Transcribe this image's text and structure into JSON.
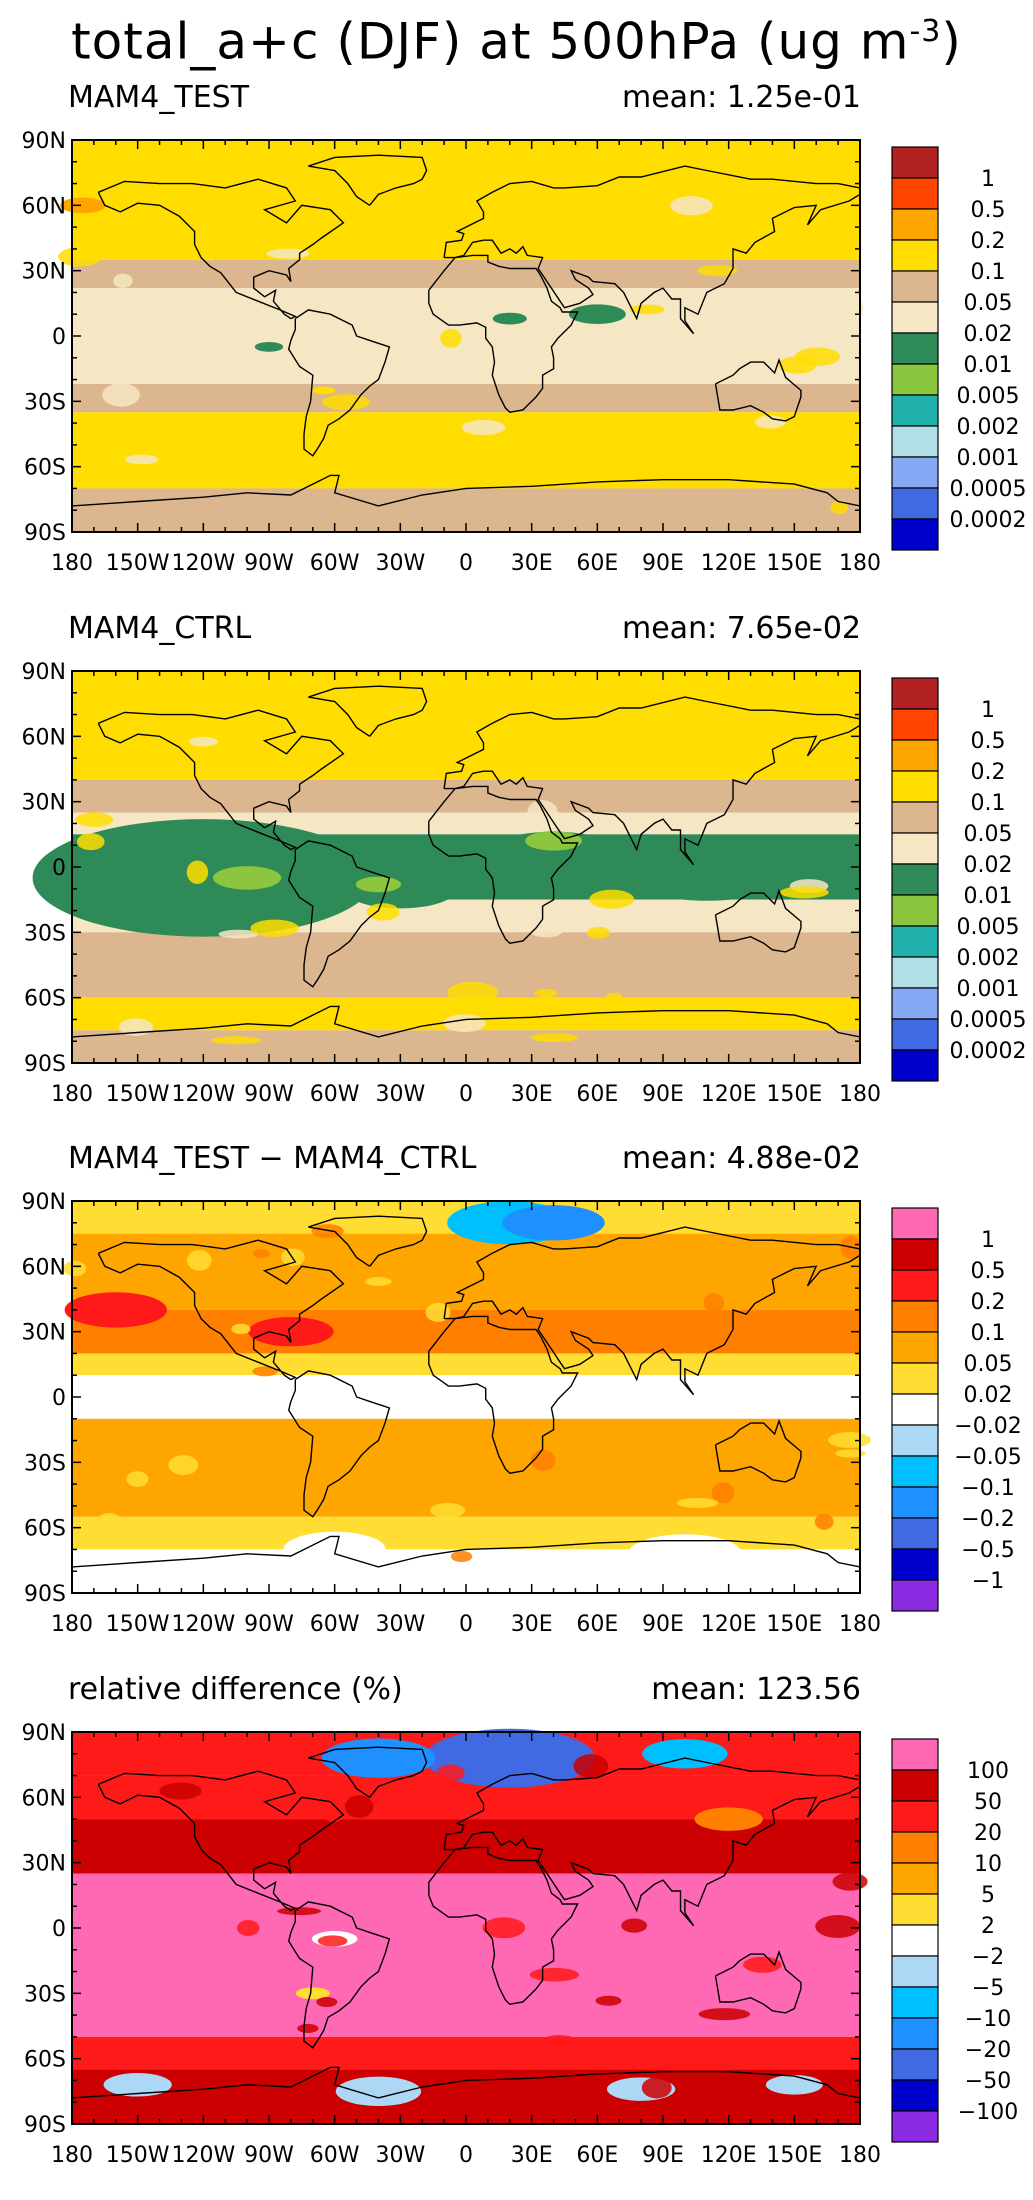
{
  "title": {
    "main": "total_a+c (DJF) at 500hPa (ug m",
    "sup": "-3",
    "close": ")"
  },
  "axes": {
    "lat_labels": [
      "90N",
      "60N",
      "30N",
      "0",
      "30S",
      "60S",
      "90S"
    ],
    "lon_labels": [
      "180",
      "150W",
      "120W",
      "90W",
      "60W",
      "30W",
      "0",
      "30E",
      "60E",
      "90E",
      "120E",
      "150E",
      "180"
    ]
  },
  "chart_data": [
    {
      "type": "heatmap",
      "title": "MAM4_TEST",
      "stat_label": "mean:",
      "stat_value": "1.25e-01",
      "field": "abs",
      "legend": {
        "labels": [
          "1",
          "0.5",
          "0.2",
          "0.1",
          "0.05",
          "0.02",
          "0.01",
          "0.005",
          "0.002",
          "0.001",
          "0.0005",
          "0.0002"
        ],
        "colors": [
          "#b22222",
          "#ff4500",
          "#ffa500",
          "#ffdd00",
          "#dbb68f",
          "#f5e6c4",
          "#2e8b57",
          "#8cc63e",
          "#20b2aa",
          "#b0e0e6",
          "#87a8f5",
          "#4169e1",
          "#0000cd"
        ]
      }
    },
    {
      "type": "heatmap",
      "title": "MAM4_CTRL",
      "stat_label": "mean:",
      "stat_value": "7.65e-02",
      "field": "abs",
      "legend": {
        "labels": [
          "1",
          "0.5",
          "0.2",
          "0.1",
          "0.05",
          "0.02",
          "0.01",
          "0.005",
          "0.002",
          "0.001",
          "0.0005",
          "0.0002"
        ],
        "colors": [
          "#b22222",
          "#ff4500",
          "#ffa500",
          "#ffdd00",
          "#dbb68f",
          "#f5e6c4",
          "#2e8b57",
          "#8cc63e",
          "#20b2aa",
          "#b0e0e6",
          "#87a8f5",
          "#4169e1",
          "#0000cd"
        ]
      }
    },
    {
      "type": "heatmap",
      "title": "MAM4_TEST − MAM4_CTRL",
      "stat_label": "mean:",
      "stat_value": "4.88e-02",
      "field": "diff",
      "legend": {
        "labels": [
          "1",
          "0.5",
          "0.2",
          "0.1",
          "0.05",
          "0.02",
          "−0.02",
          "−0.05",
          "−0.1",
          "−0.2",
          "−0.5",
          "−1"
        ],
        "colors": [
          "#ff69b4",
          "#cc0000",
          "#ff1a1a",
          "#ff7f00",
          "#ffa500",
          "#ffdd33",
          "#ffffff",
          "#add8f5",
          "#00bfff",
          "#1e90ff",
          "#4169e1",
          "#0000cd",
          "#8a2be2"
        ]
      }
    },
    {
      "type": "heatmap",
      "title": "relative difference (%)",
      "stat_label": "mean:",
      "stat_value": "123.56",
      "field": "rel",
      "legend": {
        "labels": [
          "100",
          "50",
          "20",
          "10",
          "5",
          "2",
          "−2",
          "−5",
          "−10",
          "−20",
          "−50",
          "−100"
        ],
        "colors": [
          "#ff69b4",
          "#cc0000",
          "#ff1a1a",
          "#ff7f00",
          "#ffa500",
          "#ffdd33",
          "#ffffff",
          "#add8f5",
          "#00bfff",
          "#1e90ff",
          "#4169e1",
          "#0000cd",
          "#8a2be2"
        ]
      }
    }
  ]
}
